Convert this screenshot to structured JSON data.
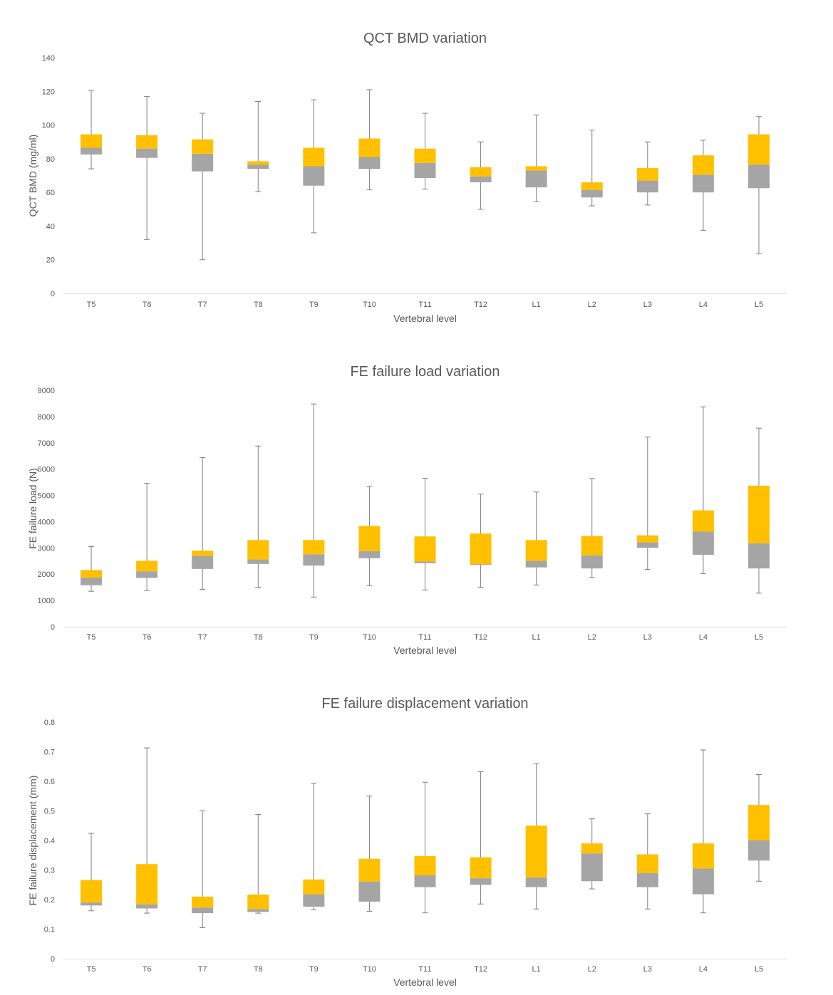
{
  "colors": {
    "upper_box": "#ffc000",
    "lower_box": "#a5a5a5",
    "whisker": "#7f7f7f",
    "axis": "#d9d9d9",
    "text": "#595959"
  },
  "chart_data": [
    {
      "type": "box",
      "title": "QCT BMD variation",
      "xlabel": "Vertebral level",
      "ylabel": "QCT BMD (mg/ml)",
      "ylim": [
        0,
        140
      ],
      "yticks": [
        "0",
        "20",
        "40",
        "60",
        "80",
        "100",
        "120",
        "140"
      ],
      "categories": [
        "T5",
        "T6",
        "T7",
        "T8",
        "T9",
        "T10",
        "T11",
        "T12",
        "L1",
        "L2",
        "L3",
        "L4",
        "L5"
      ],
      "min": [
        74,
        32,
        20,
        60.5,
        36,
        61.5,
        62,
        50,
        54.5,
        52,
        52.5,
        37.5,
        23.5
      ],
      "q1": [
        82.5,
        80.5,
        72.5,
        74,
        64,
        74,
        68.5,
        66,
        63,
        57,
        60,
        60,
        62.5
      ],
      "median": [
        86.5,
        86,
        83,
        76.5,
        75.5,
        81,
        77.5,
        69.5,
        73,
        61.5,
        67,
        70.5,
        76.5
      ],
      "q3": [
        94.5,
        94,
        91.5,
        78.5,
        86.5,
        92,
        86,
        75,
        75.5,
        66,
        74.5,
        82,
        94.5
      ],
      "max": [
        120.5,
        117,
        107,
        114,
        115,
        121,
        107,
        90,
        106,
        97,
        90,
        91,
        105
      ]
    },
    {
      "type": "box",
      "title": "FE failure load variation",
      "xlabel": "Vertebral level",
      "ylabel": "FE failure load (N)",
      "ylim": [
        0,
        9000
      ],
      "yticks": [
        "0",
        "1000",
        "2000",
        "3000",
        "4000",
        "5000",
        "6000",
        "7000",
        "8000",
        "9000"
      ],
      "categories": [
        "T5",
        "T6",
        "T7",
        "T8",
        "T9",
        "T10",
        "T11",
        "T12",
        "L1",
        "L2",
        "L3",
        "L4",
        "L5"
      ],
      "min": [
        1350,
        1380,
        1420,
        1500,
        1130,
        1560,
        1400,
        1500,
        1590,
        1870,
        2180,
        2020,
        1280
      ],
      "q1": [
        1580,
        1860,
        2200,
        2390,
        2330,
        2610,
        2420,
        2350,
        2260,
        2220,
        3010,
        2740,
        2220
      ],
      "median": [
        1870,
        2110,
        2700,
        2560,
        2760,
        2880,
        2480,
        2380,
        2510,
        2720,
        3210,
        3620,
        3180
      ],
      "q3": [
        2160,
        2510,
        2900,
        3300,
        3300,
        3840,
        3440,
        3550,
        3300,
        3460,
        3480,
        4430,
        5370
      ],
      "max": [
        3050,
        5460,
        6440,
        6880,
        8480,
        5330,
        5650,
        5050,
        5130,
        5640,
        7220,
        8370,
        7560
      ]
    },
    {
      "type": "box",
      "title": "FE failure displacement variation",
      "xlabel": "Vertebral level",
      "ylabel": "FE failure displacement (mm)",
      "ylim": [
        0,
        0.8
      ],
      "yticks": [
        "0",
        "0.1",
        "0.2",
        "0.3",
        "0.4",
        "0.5",
        "0.6",
        "0.7",
        "0.8"
      ],
      "categories": [
        "T5",
        "T6",
        "T7",
        "T8",
        "T9",
        "T10",
        "T11",
        "T12",
        "L1",
        "L2",
        "L3",
        "L4",
        "L5"
      ],
      "min": [
        0.162,
        0.154,
        0.105,
        0.154,
        0.166,
        0.16,
        0.155,
        0.185,
        0.168,
        0.236,
        0.168,
        0.155,
        0.262
      ],
      "q1": [
        0.18,
        0.17,
        0.154,
        0.158,
        0.176,
        0.193,
        0.242,
        0.25,
        0.242,
        0.262,
        0.242,
        0.218,
        0.332
      ],
      "median": [
        0.19,
        0.184,
        0.173,
        0.168,
        0.218,
        0.261,
        0.282,
        0.272,
        0.275,
        0.356,
        0.29,
        0.305,
        0.4
      ],
      "q3": [
        0.266,
        0.32,
        0.21,
        0.217,
        0.268,
        0.338,
        0.347,
        0.343,
        0.45,
        0.39,
        0.353,
        0.39,
        0.52
      ],
      "max": [
        0.424,
        0.713,
        0.5,
        0.488,
        0.594,
        0.55,
        0.597,
        0.633,
        0.66,
        0.473,
        0.49,
        0.706,
        0.623
      ]
    }
  ]
}
